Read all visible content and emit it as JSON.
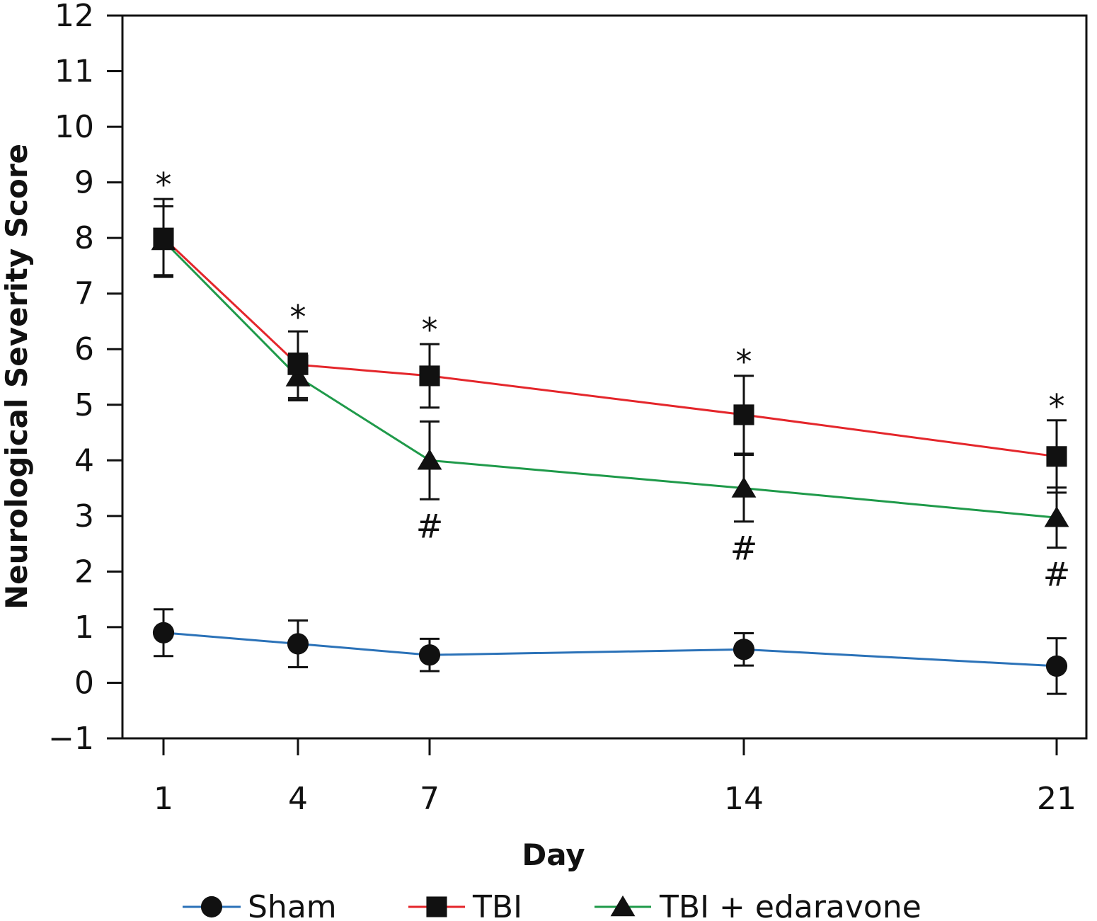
{
  "chart_data": {
    "type": "line",
    "title": "",
    "xlabel": "Day",
    "ylabel": "Neurological Severity Score",
    "categories": [
      "1",
      "4",
      "7",
      "14",
      "21"
    ],
    "x": [
      1,
      4,
      7,
      14,
      21
    ],
    "ylim": [
      -1,
      12
    ],
    "yticks": [
      "−1",
      "0",
      "1",
      "2",
      "3",
      "4",
      "5",
      "6",
      "7",
      "8",
      "9",
      "10",
      "11",
      "12"
    ],
    "grid": false,
    "legend_position": "bottom",
    "series": [
      {
        "name": "Sham",
        "color": "#2b72b8",
        "marker": "circle",
        "values": [
          0.9,
          0.7,
          0.5,
          0.6,
          0.3
        ],
        "error": [
          0.42,
          0.42,
          0.29,
          0.29,
          0.5
        ]
      },
      {
        "name": "TBI",
        "color": "#e4262b",
        "marker": "square",
        "values": [
          8.0,
          5.72,
          5.52,
          4.82,
          4.07
        ],
        "error": [
          0.7,
          0.6,
          0.57,
          0.7,
          0.65
        ]
      },
      {
        "name": "TBI + edaravone",
        "color": "#1f9a4a",
        "marker": "triangle",
        "values": [
          7.95,
          5.5,
          4.0,
          3.5,
          2.97
        ],
        "error": [
          0.62,
          0.42,
          0.7,
          0.6,
          0.54
        ]
      }
    ],
    "annotations": [
      {
        "x": 1,
        "text": "*",
        "anchor_value": 8.7,
        "side": "above"
      },
      {
        "x": 4,
        "text": "*",
        "anchor_value": 6.32,
        "side": "above"
      },
      {
        "x": 7,
        "text": "*",
        "anchor_value": 6.09,
        "side": "above"
      },
      {
        "x": 14,
        "text": "*",
        "anchor_value": 5.52,
        "side": "above"
      },
      {
        "x": 21,
        "text": "*",
        "anchor_value": 4.72,
        "side": "above"
      },
      {
        "x": 7,
        "text": "#",
        "anchor_value": 3.3,
        "side": "below"
      },
      {
        "x": 14,
        "text": "#",
        "anchor_value": 2.9,
        "side": "below"
      },
      {
        "x": 21,
        "text": "#",
        "anchor_value": 2.43,
        "side": "below"
      }
    ]
  }
}
